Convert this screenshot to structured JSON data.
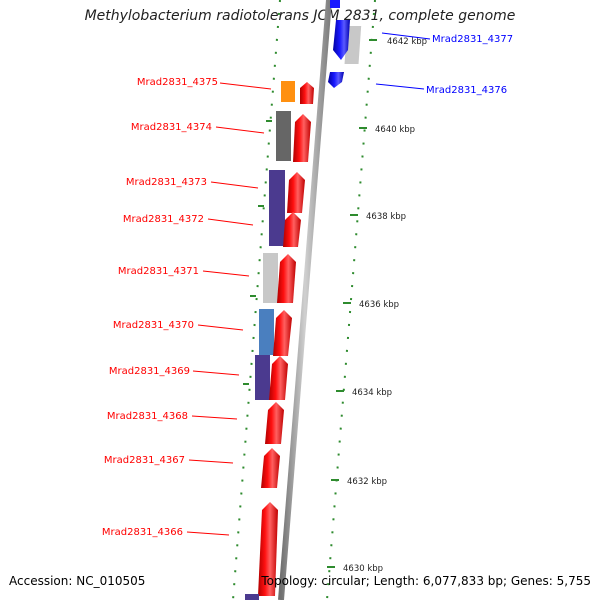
{
  "title": "Methylobacterium radiotolerans JCM 2831, complete genome",
  "footer": {
    "accession": "Accession: NC_010505",
    "summary": "Topology: circular; Length: 6,077,833 bp; Genes: 5,755"
  },
  "colors": {
    "forward_gene": "#ff0000",
    "reverse_gene": "#0000ff",
    "backbone": "#999999",
    "dots": "#2e8b2e"
  },
  "scale_ticks": [
    "4642 kbp",
    "4640 kbp",
    "4638 kbp",
    "4636 kbp",
    "4634 kbp",
    "4632 kbp",
    "4630 kbp"
  ],
  "genes_left": [
    {
      "label": "Mrad2831_4375",
      "cog_color": "#ff9010"
    },
    {
      "label": "Mrad2831_4374",
      "cog_color": "#666666"
    },
    {
      "label": "Mrad2831_4373",
      "cog_color": "#4b3a8f"
    },
    {
      "label": "Mrad2831_4372",
      "cog_color": "#4b3a8f"
    },
    {
      "label": "Mrad2831_4371",
      "cog_color": "#c8c8c8"
    },
    {
      "label": "Mrad2831_4370",
      "cog_color": "#4a7fbf"
    },
    {
      "label": "Mrad2831_4369",
      "cog_color": "#4b3a8f"
    },
    {
      "label": "Mrad2831_4368",
      "cog_color": ""
    },
    {
      "label": "Mrad2831_4367",
      "cog_color": ""
    },
    {
      "label": "Mrad2831_4366",
      "cog_color": ""
    }
  ],
  "genes_right": [
    {
      "label": "Mrad2831_4377",
      "cog_color": "#c8c8c8"
    },
    {
      "label": "Mrad2831_4376",
      "cog_color": ""
    }
  ]
}
